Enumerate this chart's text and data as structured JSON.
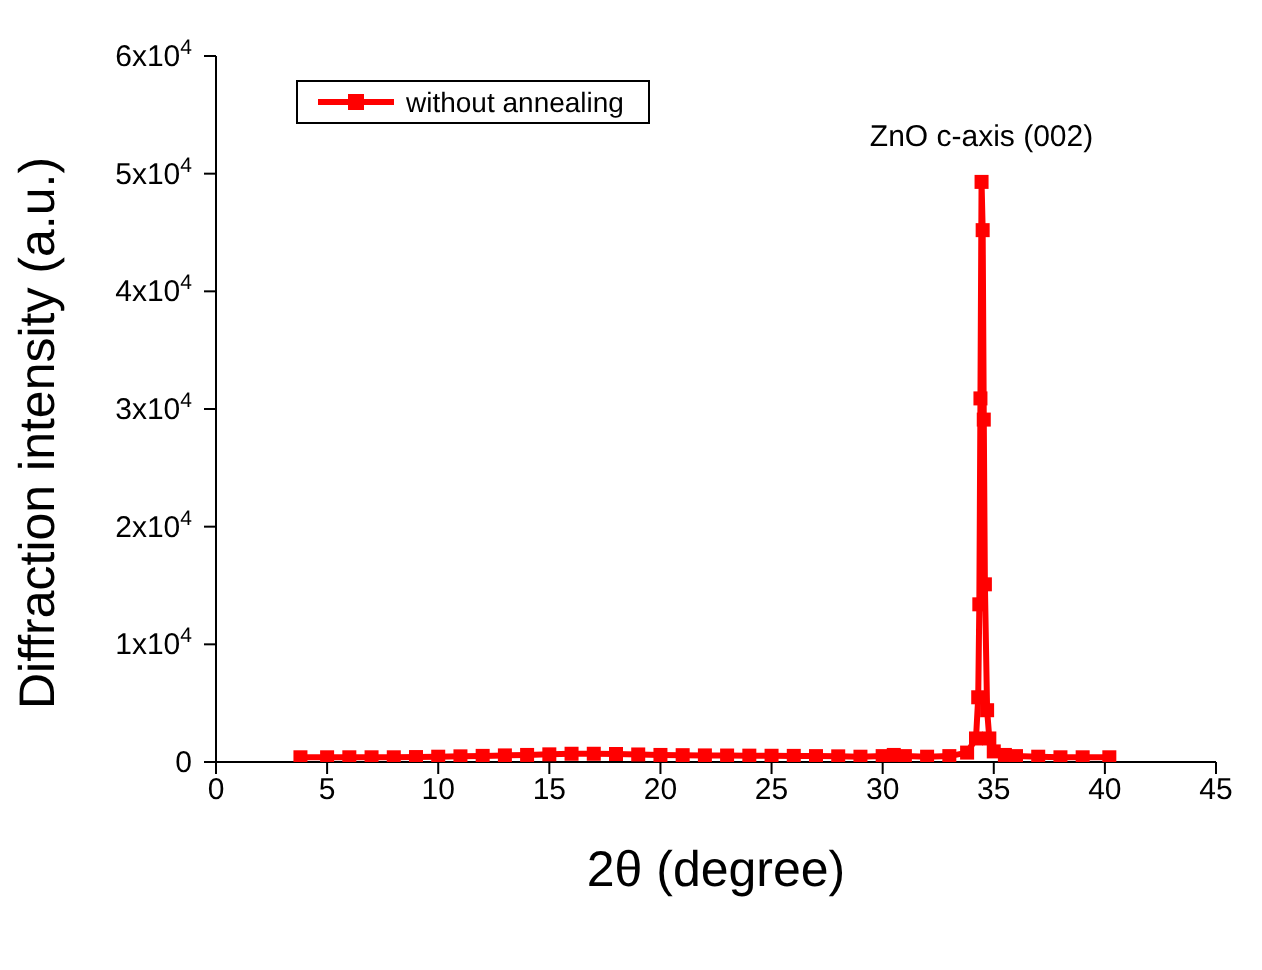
{
  "chart_data": {
    "type": "line",
    "xlabel": "2θ (degree)",
    "ylabel": "Diffraction intensity (a.u.)",
    "x": [
      3.8,
      5,
      6,
      7,
      8,
      9,
      10,
      11,
      12,
      13,
      14,
      15,
      16,
      17,
      18,
      19,
      20,
      21,
      22,
      23,
      24,
      25,
      26,
      27,
      28,
      29,
      30,
      30.5,
      31,
      32,
      33,
      33.8,
      34.2,
      34.3,
      34.35,
      34.4,
      34.45,
      34.5,
      34.55,
      34.6,
      34.7,
      34.8,
      35,
      35.5,
      36,
      37,
      38,
      39,
      40.2
    ],
    "series": [
      {
        "name": "without annealing",
        "color": "#ff0000",
        "values": [
          400,
          400,
          400,
          400,
          400,
          420,
          450,
          480,
          520,
          560,
          600,
          650,
          700,
          700,
          680,
          640,
          600,
          580,
          560,
          550,
          540,
          530,
          520,
          500,
          480,
          450,
          500,
          600,
          500,
          450,
          500,
          800,
          2000,
          5500,
          13400,
          30900,
          49300,
          45200,
          29100,
          15100,
          4400,
          2000,
          900,
          600,
          500,
          450,
          400,
          400,
          400
        ]
      }
    ],
    "xlim": [
      0,
      45
    ],
    "xticks": [
      0,
      5,
      10,
      15,
      20,
      25,
      30,
      35,
      40,
      45
    ],
    "ylim": [
      0,
      60000
    ],
    "yticks": [
      0,
      {
        "value": 10000,
        "label": "1x10$^{4}$"
      },
      {
        "value": 20000,
        "label": "2x10$^{4}$"
      },
      {
        "value": 30000,
        "label": "3x10$^{4}$"
      },
      {
        "value": 40000,
        "label": "4x10$^{4}$"
      },
      {
        "value": 50000,
        "label": "5x10$^{4}$"
      },
      {
        "value": 60000,
        "label": "6x10$^{4}$"
      }
    ],
    "annotations": [
      {
        "text": "ZnO c-axis (002)",
        "x": 34.45,
        "y": 49300
      }
    ],
    "legend": "top left",
    "marker": "square",
    "line_style": "solid",
    "grid": false
  }
}
